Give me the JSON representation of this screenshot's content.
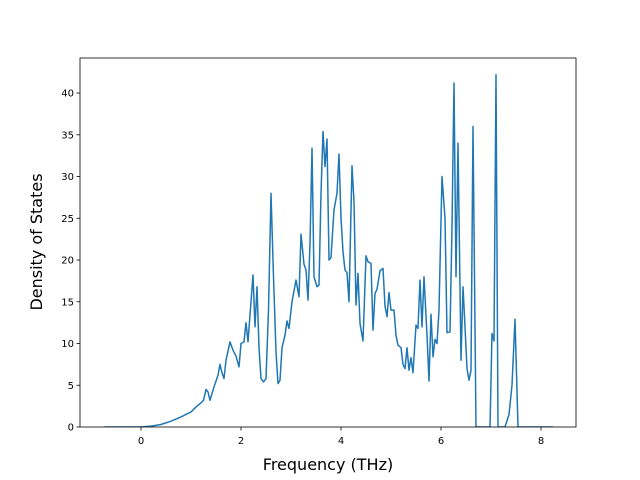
{
  "chart_data": {
    "type": "line",
    "xlabel": "Frequency (THz)",
    "ylabel": "Density of States",
    "color": "#1f77b4",
    "xlim": [
      -1.22,
      8.7
    ],
    "ylim": [
      0,
      44.2
    ],
    "xticks": [
      0,
      2,
      4,
      6,
      8
    ],
    "yticks": [
      0,
      5,
      10,
      15,
      20,
      25,
      30,
      35,
      40
    ],
    "x": [
      -0.73,
      -0.4,
      0,
      0.2,
      0.4,
      0.6,
      0.8,
      1.0,
      1.1,
      1.2,
      1.25,
      1.3,
      1.34,
      1.38,
      1.46,
      1.54,
      1.58,
      1.62,
      1.66,
      1.7,
      1.78,
      1.84,
      1.9,
      1.96,
      2.0,
      2.06,
      2.1,
      2.14,
      2.2,
      2.24,
      2.28,
      2.32,
      2.36,
      2.4,
      2.45,
      2.5,
      2.55,
      2.6,
      2.65,
      2.7,
      2.74,
      2.78,
      2.82,
      2.88,
      2.92,
      2.96,
      3.02,
      3.1,
      3.16,
      3.2,
      3.26,
      3.3,
      3.34,
      3.38,
      3.42,
      3.46,
      3.52,
      3.56,
      3.6,
      3.64,
      3.68,
      3.72,
      3.76,
      3.8,
      3.86,
      3.92,
      3.96,
      4.0,
      4.04,
      4.08,
      4.12,
      4.16,
      4.22,
      4.26,
      4.3,
      4.34,
      4.38,
      4.44,
      4.5,
      4.54,
      4.6,
      4.64,
      4.68,
      4.72,
      4.78,
      4.84,
      4.88,
      4.92,
      4.96,
      5.0,
      5.06,
      5.1,
      5.14,
      5.2,
      5.24,
      5.28,
      5.32,
      5.36,
      5.4,
      5.44,
      5.5,
      5.54,
      5.58,
      5.62,
      5.66,
      5.72,
      5.76,
      5.8,
      5.84,
      5.88,
      5.92,
      5.96,
      6.02,
      6.08,
      6.12,
      6.18,
      6.22,
      6.26,
      6.3,
      6.34,
      6.4,
      6.44,
      6.48,
      6.52,
      6.56,
      6.6,
      6.64,
      6.7,
      6.98,
      7.02,
      7.06,
      7.1,
      7.14,
      7.28,
      7.36,
      7.42,
      7.48,
      7.54,
      8.24
    ],
    "values": [
      0,
      0,
      0,
      0.1,
      0.3,
      0.7,
      1.2,
      1.8,
      2.4,
      2.9,
      3.2,
      4.5,
      4.2,
      3.2,
      4.8,
      6.2,
      7.5,
      6.5,
      5.8,
      8,
      10.2,
      9.2,
      8.5,
      7.2,
      10,
      10.2,
      12.5,
      10.2,
      15,
      18.2,
      12,
      16.8,
      9.5,
      5.8,
      5.4,
      5.8,
      14,
      28,
      18,
      9,
      5.2,
      5.6,
      9.5,
      11,
      12.7,
      11.8,
      15,
      17.6,
      15.6,
      23.1,
      19.5,
      18.8,
      15.2,
      22,
      33.4,
      18,
      16.8,
      17,
      28,
      35.4,
      31.2,
      34.5,
      20,
      20.3,
      26,
      28,
      32.7,
      25,
      21,
      18.8,
      18.5,
      15,
      31.3,
      27,
      14.6,
      18.4,
      12.4,
      10.3,
      20.5,
      19.8,
      19.6,
      11.6,
      16,
      16.5,
      18.7,
      19,
      14.5,
      13.2,
      16.1,
      14,
      14,
      11,
      9.8,
      9.5,
      7.5,
      7,
      9.5,
      6.8,
      8.3,
      6.5,
      12.2,
      11.8,
      17.6,
      12,
      18,
      11,
      5.5,
      13.5,
      8.4,
      10.5,
      10,
      14,
      30,
      25,
      11.3,
      11.4,
      24,
      41.2,
      18,
      34,
      8,
      16.8,
      12,
      7,
      5.6,
      6.8,
      36,
      0,
      0,
      11.2,
      10.3,
      42.2,
      0,
      0,
      1.5,
      5,
      12.9,
      0,
      0
    ]
  }
}
